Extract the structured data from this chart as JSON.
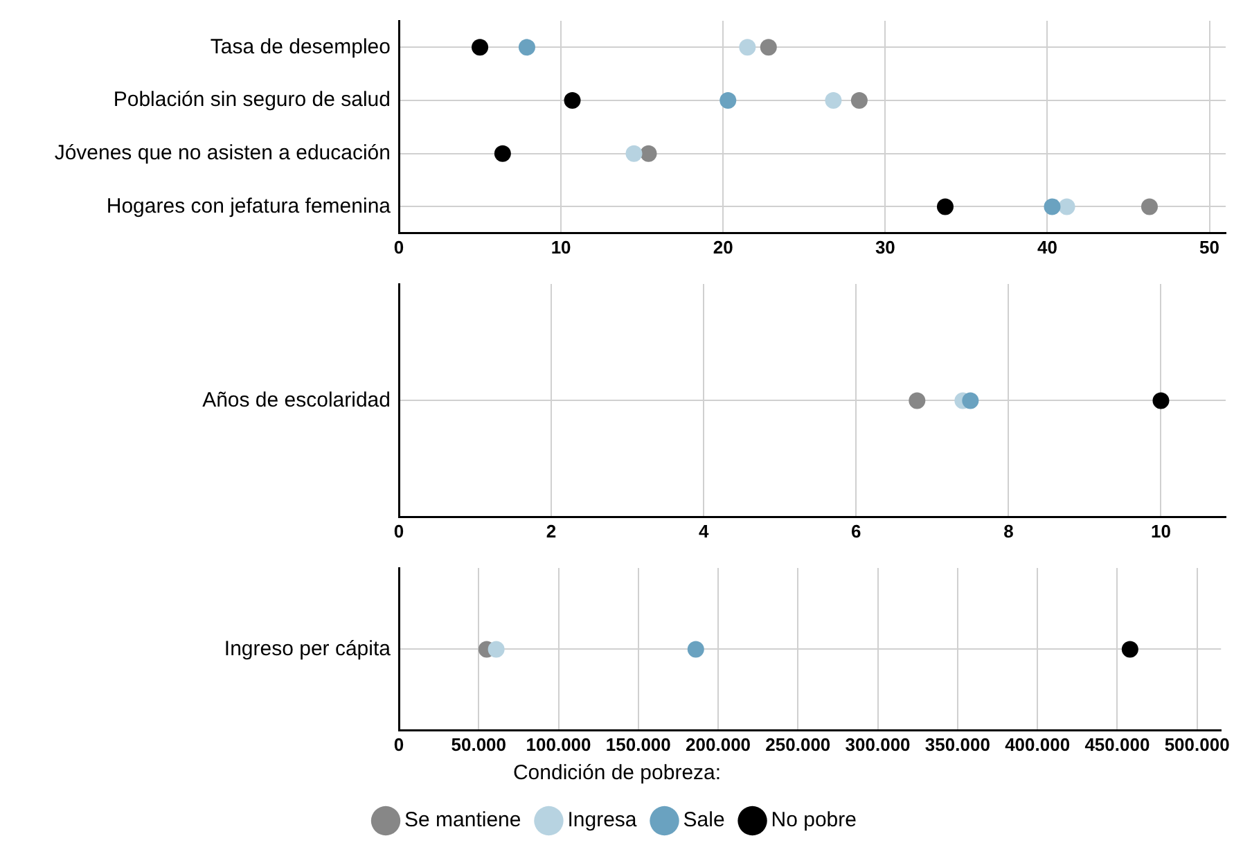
{
  "chart_data": [
    {
      "type": "scatter",
      "orientation": "horizontal",
      "categories": [
        "Tasa de desempleo",
        "Población sin seguro de salud",
        "Jóvenes que no asisten a educación",
        "Hogares con jefatura femenina"
      ],
      "xlim": [
        0,
        51
      ],
      "xticks": [
        0,
        10,
        20,
        30,
        40,
        50
      ],
      "grid": true,
      "marker": "circle",
      "legend": false,
      "series": [
        {
          "color": "#878787",
          "values": [
            22.8,
            28.4,
            15.4,
            46.3
          ]
        },
        {
          "color": "#b7d3e1",
          "values": [
            21.5,
            26.8,
            14.5,
            41.2
          ]
        },
        {
          "color": "#6aa2c0",
          "values": [
            7.9,
            20.3,
            null,
            40.3
          ]
        },
        {
          "color": "#000000",
          "values": [
            5.0,
            10.7,
            6.4,
            33.7
          ]
        }
      ]
    },
    {
      "type": "scatter",
      "orientation": "horizontal",
      "categories": [
        "Años de escolaridad"
      ],
      "xlim": [
        0,
        10.85
      ],
      "xticks": [
        0,
        2,
        4,
        6,
        8,
        10
      ],
      "grid": true,
      "marker": "circle",
      "legend": false,
      "series": [
        {
          "color": "#878787",
          "values": [
            6.8
          ]
        },
        {
          "color": "#b7d3e1",
          "values": [
            7.4
          ]
        },
        {
          "color": "#6aa2c0",
          "values": [
            7.5
          ]
        },
        {
          "color": "#000000",
          "values": [
            10.0
          ]
        }
      ]
    },
    {
      "type": "scatter",
      "orientation": "horizontal",
      "categories": [
        "Ingreso per cápita"
      ],
      "xlim": [
        0,
        515000
      ],
      "xticks": [
        0,
        {
          "value": 50000,
          "label": "50.000"
        },
        {
          "value": 100000,
          "label": "100.000"
        },
        {
          "value": 150000,
          "label": "150.000"
        },
        {
          "value": 200000,
          "label": "200.000"
        },
        {
          "value": 250000,
          "label": "250.000"
        },
        {
          "value": 300000,
          "label": "300.000"
        },
        {
          "value": 350000,
          "label": "350.000"
        },
        {
          "value": 400000,
          "label": "400.000"
        },
        {
          "value": 450000,
          "label": "450.000"
        },
        {
          "value": 500000,
          "label": "500.000"
        }
      ],
      "grid": true,
      "marker": "circle",
      "legend": "bottom",
      "legend_title": "Condición de pobreza:",
      "series": [
        {
          "name": "Se mantiene",
          "color": "#878787",
          "values": [
            55000
          ]
        },
        {
          "name": "Ingresa",
          "color": "#b7d3e1",
          "values": [
            61000
          ]
        },
        {
          "name": "Sale",
          "color": "#6aa2c0",
          "values": [
            186000
          ]
        },
        {
          "name": "No pobre",
          "color": "#000000",
          "values": [
            458000
          ]
        }
      ]
    }
  ]
}
